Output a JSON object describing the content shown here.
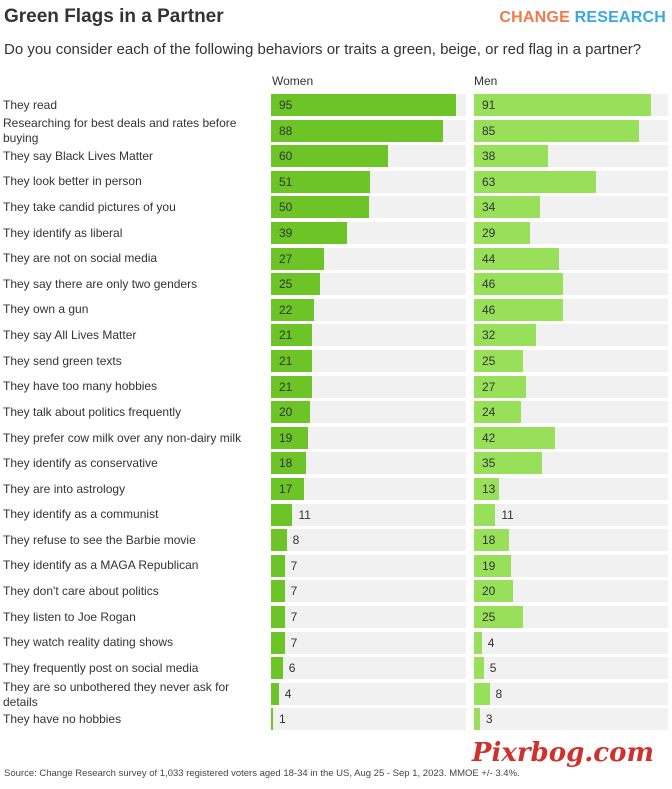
{
  "header": {
    "title": "Green Flags in a Partner",
    "brand_part1": "CHANGE",
    "brand_part2": "RESEARCH",
    "subtitle": "Do you consider each of the following behaviors or traits a green, beige, or red flag in a partner?"
  },
  "colors": {
    "women_bar": "#6dc426",
    "men_bar": "#98e05a",
    "track": "#f1f1f1",
    "brand_orange": "#f2784b",
    "brand_blue": "#36a9e1"
  },
  "chart_data": {
    "type": "bar",
    "orientation": "horizontal",
    "categories": [
      "They read",
      "Researching for best deals and rates before buying",
      "They say Black Lives Matter",
      "They look better in person",
      "They take candid pictures of you",
      "They identify as liberal",
      "They are not on social media",
      "They say there are only two genders",
      "They own a gun",
      "They say All Lives Matter",
      "They send green texts",
      "They have too many hobbies",
      "They talk about politics frequently",
      "They prefer cow milk over any non-dairy milk",
      "They identify as conservative",
      "They are into astrology",
      "They identify as a communist",
      "They refuse to see the Barbie movie",
      "They identify as a MAGA Republican",
      "They don't care about politics",
      "They listen to Joe Rogan",
      "They watch reality dating shows",
      "They frequently post on social media",
      "They are so unbothered they never ask for details",
      "They have no hobbies"
    ],
    "series": [
      {
        "name": "Women",
        "values": [
          95,
          88,
          60,
          51,
          50,
          39,
          27,
          25,
          22,
          21,
          21,
          21,
          20,
          19,
          18,
          17,
          11,
          8,
          7,
          7,
          7,
          7,
          6,
          4,
          1
        ]
      },
      {
        "name": "Men",
        "values": [
          91,
          85,
          38,
          63,
          34,
          29,
          44,
          46,
          46,
          32,
          25,
          27,
          24,
          42,
          35,
          13,
          11,
          18,
          19,
          20,
          25,
          4,
          5,
          8,
          3
        ]
      }
    ],
    "xlim": [
      0,
      100
    ],
    "grid": false,
    "legend": "column headers"
  },
  "footer": {
    "source": "Source: Change Research survey of 1,033 registered voters aged 18-34 in the US, Aug 25 - Sep 1, 2023. MMOE +/- 3.4%.",
    "watermark": "Pixrbog.com"
  }
}
